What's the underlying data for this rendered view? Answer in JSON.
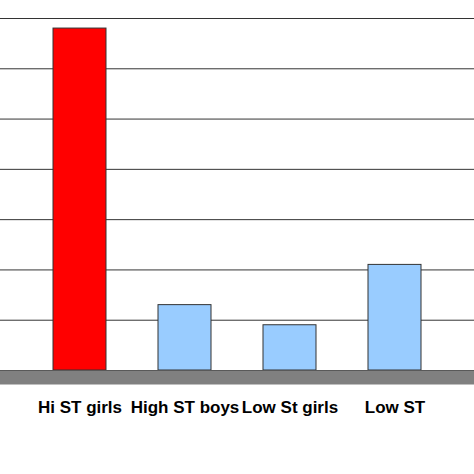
{
  "chart_data": {
    "type": "bar",
    "categories": [
      "Hi ST girls",
      "High ST boys",
      "Low St girls",
      "Low ST"
    ],
    "values": [
      6.8,
      1.3,
      0.9,
      2.1
    ],
    "colors": [
      "#ff0000",
      "#99ccff",
      "#99ccff",
      "#99ccff"
    ],
    "ylim": [
      0,
      7
    ],
    "yticks": [
      0,
      1,
      2,
      3,
      4,
      5,
      6,
      7
    ],
    "grid": true,
    "tick_labels": "x"
  }
}
